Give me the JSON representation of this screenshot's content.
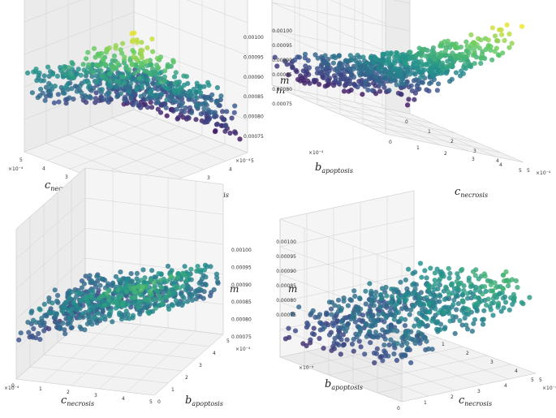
{
  "chart_data": [
    {
      "type": "scatter",
      "view": "front-left",
      "xlabel": {
        "main": "c",
        "sub": "necrosis"
      },
      "ylabel": {
        "main": "b",
        "sub": "apoptosis"
      },
      "zlabel": "m",
      "xlim": [
        0,
        0.0005
      ],
      "ylim": [
        0,
        0.0005
      ],
      "zlim": [
        0.00073,
        0.00101
      ],
      "xticks": [
        "0",
        "1",
        "2",
        "3",
        "4",
        "5"
      ],
      "yticks": [
        "0",
        "1",
        "2",
        "3",
        "4",
        "5"
      ],
      "zticks": [
        "0.00075",
        "0.00080",
        "0.00085",
        "0.00090",
        "0.00095",
        "0.00100"
      ],
      "offset_x": "×10⁻⁴",
      "offset_y": "×10⁻⁴",
      "grid": true,
      "colormap": [
        "#440154",
        "#3b528b",
        "#21918c",
        "#5ec962",
        "#fde725"
      ]
    },
    {
      "type": "scatter",
      "view": "back-right",
      "xlabel": {
        "main": "c",
        "sub": "necrosis"
      },
      "ylabel": {
        "main": "b",
        "sub": "apoptosis"
      },
      "zlabel": "m",
      "xlim": [
        0,
        0.0005
      ],
      "ylim": [
        0,
        0.0005
      ],
      "zlim": [
        0.00073,
        0.00101
      ],
      "xticks": [
        "5",
        "4",
        "3",
        "2",
        "1",
        "0"
      ],
      "yticks": [
        "5",
        "4",
        "3",
        "2",
        "1",
        "0"
      ],
      "zticks": [
        "0.00075",
        "0.00080",
        "0.00085",
        "0.00090",
        "0.00095",
        "0.00100"
      ],
      "offset_x": "×10⁻⁴",
      "offset_y": "×10⁻⁴",
      "grid": true,
      "colormap": [
        "#440154",
        "#3b528b",
        "#21918c",
        "#5ec962",
        "#fde725"
      ]
    },
    {
      "type": "scatter",
      "view": "front-right",
      "xlabel": {
        "main": "c",
        "sub": "necrosis"
      },
      "ylabel": {
        "main": "b",
        "sub": "apoptosis"
      },
      "zlabel": "m",
      "xlim": [
        0,
        0.0005
      ],
      "ylim": [
        0,
        0.0005
      ],
      "zlim": [
        0.00073,
        0.00101
      ],
      "xticks": [
        "5",
        "4",
        "3",
        "2",
        "1",
        "0"
      ],
      "yticks": [
        "0",
        "1",
        "2",
        "3",
        "4",
        "5"
      ],
      "zticks": [
        "0.00075",
        "0.00080",
        "0.00085",
        "0.00090",
        "0.00095",
        "0.00100"
      ],
      "offset_x": "×10⁻⁴",
      "offset_y": "×10⁻⁴",
      "grid": true,
      "colormap": [
        "#440154",
        "#3b528b",
        "#21918c",
        "#5ec962",
        "#fde725"
      ]
    },
    {
      "type": "scatter",
      "view": "back-left",
      "xlabel": {
        "main": "c",
        "sub": "necrosis"
      },
      "ylabel": {
        "main": "b",
        "sub": "apoptosis"
      },
      "zlabel": "m",
      "xlim": [
        0,
        0.0005
      ],
      "ylim": [
        0,
        0.0005
      ],
      "zlim": [
        0.00073,
        0.00101
      ],
      "xticks": [
        "5",
        "4",
        "3",
        "2",
        "1",
        "0"
      ],
      "yticks": [
        "5",
        "4",
        "3",
        "2",
        "1",
        "0"
      ],
      "zticks": [
        "0.00075",
        "0.00080",
        "0.00085",
        "0.00090",
        "0.00095",
        "0.00100"
      ],
      "offset_x": "×10⁻⁴",
      "offset_y": "×10⁻⁴",
      "grid": true,
      "colormap": [
        "#440154",
        "#3b528b",
        "#21918c",
        "#5ec962",
        "#fde725"
      ]
    }
  ]
}
